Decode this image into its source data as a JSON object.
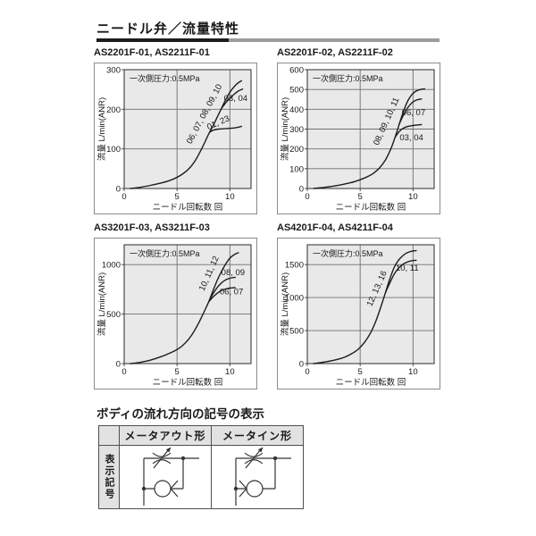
{
  "page": {
    "title": "ニードル弁／流量特性"
  },
  "chart_data": [
    {
      "type": "line",
      "title": "AS2201F-01, AS2211F-01",
      "annotation": "一次側圧力:0.5MPa",
      "xlabel": "ニードル回転数 回",
      "ylabel": "流量 L/min(ANR)",
      "xlim": [
        0,
        12
      ],
      "ylim": [
        0,
        300
      ],
      "xticks": [
        0,
        5,
        10
      ],
      "yticks": [
        0,
        100,
        200,
        300
      ],
      "grid_x": [
        5,
        10
      ],
      "grid_y": [
        100,
        200
      ],
      "series": [
        {
          "name": "06, 07, 08, 09, 10",
          "points": [
            [
              0.6,
              0
            ],
            [
              1.5,
              3
            ],
            [
              2.5,
              8
            ],
            [
              3.5,
              14
            ],
            [
              4.5,
              22
            ],
            [
              5.5,
              36
            ],
            [
              6.2,
              52
            ],
            [
              6.8,
              74
            ],
            [
              7.4,
              104
            ],
            [
              8,
              138
            ],
            [
              8.4,
              158
            ],
            [
              8.8,
              180
            ],
            [
              9.2,
              202
            ],
            [
              9.6,
              224
            ],
            [
              10,
              243
            ],
            [
              10.4,
              257
            ],
            [
              10.8,
              267
            ],
            [
              11.1,
              272
            ]
          ]
        },
        {
          "name": "03, 04",
          "points": [
            [
              9.2,
              202
            ],
            [
              9.6,
              216
            ],
            [
              10,
              228
            ],
            [
              10.4,
              238
            ],
            [
              10.8,
              246
            ],
            [
              11.2,
              251
            ]
          ]
        },
        {
          "name": "01, 23",
          "points": [
            [
              8.1,
              142
            ],
            [
              8.4,
              147
            ],
            [
              8.9,
              150
            ],
            [
              9.5,
              151
            ],
            [
              10.1,
              152
            ],
            [
              10.7,
              154
            ],
            [
              11.1,
              157
            ]
          ]
        }
      ],
      "labels": [
        {
          "text": "06, 07, 08, 09, 10",
          "x": 7.8,
          "y": 185,
          "rotate": -62
        },
        {
          "text": "03, 04",
          "x": 10.55,
          "y": 221,
          "rotate": 0
        },
        {
          "text": "01, 23",
          "x": 9.0,
          "y": 160,
          "rotate": -24
        }
      ]
    },
    {
      "type": "line",
      "title": "AS2201F-02, AS2211F-02",
      "annotation": "一次側圧力:0.5MPa",
      "xlabel": "ニードル回転数 回",
      "ylabel": "流量 L/min(ANR)",
      "xlim": [
        0,
        12
      ],
      "ylim": [
        0,
        600
      ],
      "xticks": [
        0,
        5,
        10
      ],
      "yticks": [
        0,
        100,
        200,
        300,
        400,
        500,
        600
      ],
      "grid_x": [
        5,
        10
      ],
      "grid_y": [
        100,
        200,
        300,
        400,
        500
      ],
      "series": [
        {
          "name": "08, 09, 10, 11",
          "points": [
            [
              0.6,
              0
            ],
            [
              1.5,
              5
            ],
            [
              2.5,
              12
            ],
            [
              3.5,
              22
            ],
            [
              4.5,
              35
            ],
            [
              5.5,
              55
            ],
            [
              6.2,
              75
            ],
            [
              6.8,
              102
            ],
            [
              7.4,
              145
            ],
            [
              7.9,
              200
            ],
            [
              8.3,
              258
            ],
            [
              8.7,
              325
            ],
            [
              9.1,
              390
            ],
            [
              9.5,
              442
            ],
            [
              9.9,
              475
            ],
            [
              10.3,
              492
            ],
            [
              10.7,
              500
            ],
            [
              11.1,
              503
            ]
          ]
        },
        {
          "name": "06, 07",
          "points": [
            [
              8.7,
              325
            ],
            [
              9.1,
              372
            ],
            [
              9.5,
              408
            ],
            [
              9.9,
              433
            ],
            [
              10.3,
              446
            ],
            [
              10.8,
              452
            ]
          ]
        },
        {
          "name": "03, 04",
          "points": [
            [
              8.3,
              258
            ],
            [
              8.7,
              288
            ],
            [
              9.1,
              305
            ],
            [
              9.5,
              313
            ],
            [
              10,
              318
            ],
            [
              10.8,
              323
            ]
          ]
        }
      ],
      "labels": [
        {
          "text": "08, 09, 10, 11",
          "x": 7.7,
          "y": 334,
          "rotate": -66
        },
        {
          "text": "06, 07",
          "x": 10.05,
          "y": 370,
          "rotate": 0
        },
        {
          "text": "03, 04",
          "x": 9.85,
          "y": 243,
          "rotate": 0
        }
      ]
    },
    {
      "type": "line",
      "title": "AS3201F-03, AS3211F-03",
      "annotation": "一次側圧力:0.5MPa",
      "xlabel": "ニードル回転数 回",
      "ylabel": "流量 L/min(ANR)",
      "xlim": [
        0,
        12
      ],
      "ylim": [
        0,
        1200
      ],
      "xticks": [
        0,
        5,
        10
      ],
      "yticks": [
        0,
        500,
        1000
      ],
      "grid_x": [
        5,
        10
      ],
      "grid_y": [
        500,
        1000
      ],
      "series": [
        {
          "name": "10, 11, 12",
          "points": [
            [
              0.6,
              0
            ],
            [
              1.5,
              12
            ],
            [
              2.5,
              35
            ],
            [
              3.5,
              70
            ],
            [
              4.5,
              115
            ],
            [
              5.2,
              155
            ],
            [
              5.8,
              210
            ],
            [
              6.4,
              290
            ],
            [
              7,
              400
            ],
            [
              7.5,
              510
            ],
            [
              8,
              625
            ],
            [
              8.4,
              735
            ],
            [
              8.8,
              840
            ],
            [
              9.2,
              930
            ],
            [
              9.6,
              1005
            ],
            [
              10,
              1065
            ],
            [
              10.4,
              1100
            ],
            [
              10.8,
              1120
            ]
          ]
        },
        {
          "name": "08, 09",
          "points": [
            [
              8,
              625
            ],
            [
              8.4,
              705
            ],
            [
              8.8,
              768
            ],
            [
              9.2,
              815
            ],
            [
              9.6,
              845
            ],
            [
              10,
              862
            ],
            [
              10.5,
              872
            ]
          ]
        },
        {
          "name": "06, 07",
          "points": [
            [
              8,
              625
            ],
            [
              8.4,
              672
            ],
            [
              8.8,
              710
            ],
            [
              9.2,
              737
            ],
            [
              9.6,
              753
            ],
            [
              10,
              762
            ],
            [
              10.5,
              768
            ]
          ]
        }
      ],
      "labels": [
        {
          "text": "10, 11, 12",
          "x": 8.25,
          "y": 900,
          "rotate": -66
        },
        {
          "text": "08, 09",
          "x": 10.3,
          "y": 895,
          "rotate": 0
        },
        {
          "text": "06, 07",
          "x": 10.15,
          "y": 700,
          "rotate": 0
        }
      ]
    },
    {
      "type": "line",
      "title": "AS4201F-04, AS4211F-04",
      "annotation": "一次側圧力:0.5MPa",
      "xlabel": "ニードル回転数 回",
      "ylabel": "流量 L/min(ANR)",
      "xlim": [
        0,
        12
      ],
      "ylim": [
        0,
        1800
      ],
      "xticks": [
        0,
        5,
        10
      ],
      "yticks": [
        0,
        500,
        1000,
        1500
      ],
      "grid_x": [
        5,
        10
      ],
      "grid_y": [
        500,
        1000,
        1500
      ],
      "series": [
        {
          "name": "12, 13, 16",
          "points": [
            [
              0.6,
              0
            ],
            [
              1.5,
              20
            ],
            [
              2.5,
              50
            ],
            [
              3.5,
              95
            ],
            [
              4.2,
              150
            ],
            [
              4.8,
              215
            ],
            [
              5.4,
              320
            ],
            [
              6,
              470
            ],
            [
              6.5,
              650
            ],
            [
              7,
              880
            ],
            [
              7.4,
              1080
            ],
            [
              7.8,
              1280
            ],
            [
              8.2,
              1450
            ],
            [
              8.6,
              1560
            ],
            [
              9,
              1630
            ],
            [
              9.4,
              1675
            ],
            [
              9.8,
              1700
            ],
            [
              10.3,
              1712
            ]
          ]
        },
        {
          "name": "10, 11",
          "points": [
            [
              7.4,
              1080
            ],
            [
              7.8,
              1220
            ],
            [
              8.2,
              1350
            ],
            [
              8.6,
              1440
            ],
            [
              9,
              1500
            ],
            [
              9.4,
              1535
            ],
            [
              9.8,
              1555
            ],
            [
              10.3,
              1565
            ]
          ]
        }
      ],
      "labels": [
        {
          "text": "12, 13, 16",
          "x": 6.8,
          "y": 1120,
          "rotate": -66
        },
        {
          "text": "10, 11",
          "x": 9.45,
          "y": 1410,
          "rotate": 0
        }
      ]
    }
  ],
  "flow_symbols": {
    "title": "ボディの流れ方向の記号の表示",
    "col_headers": [
      "メータアウト形",
      "メータイン形"
    ],
    "row_header": "表示記号",
    "symbols": [
      {
        "name": "meter-out",
        "check_v_side": "right"
      },
      {
        "name": "meter-in",
        "check_v_side": "left"
      }
    ]
  }
}
